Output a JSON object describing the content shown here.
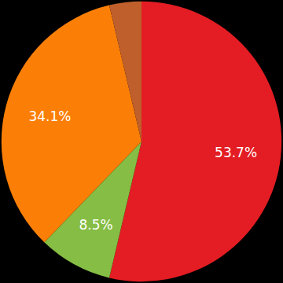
{
  "chart_data": {
    "type": "pie",
    "categories": [
      null,
      null,
      null,
      null
    ],
    "values": [
      53.7,
      8.5,
      34.1,
      3.7
    ],
    "value_labels": [
      "53.7%",
      "8.5%",
      "34.1%",
      null
    ],
    "colors": [
      "#e31d23",
      "#86bd44",
      "#fb7f06",
      "#bf5f2c"
    ],
    "data_labels": true
  }
}
